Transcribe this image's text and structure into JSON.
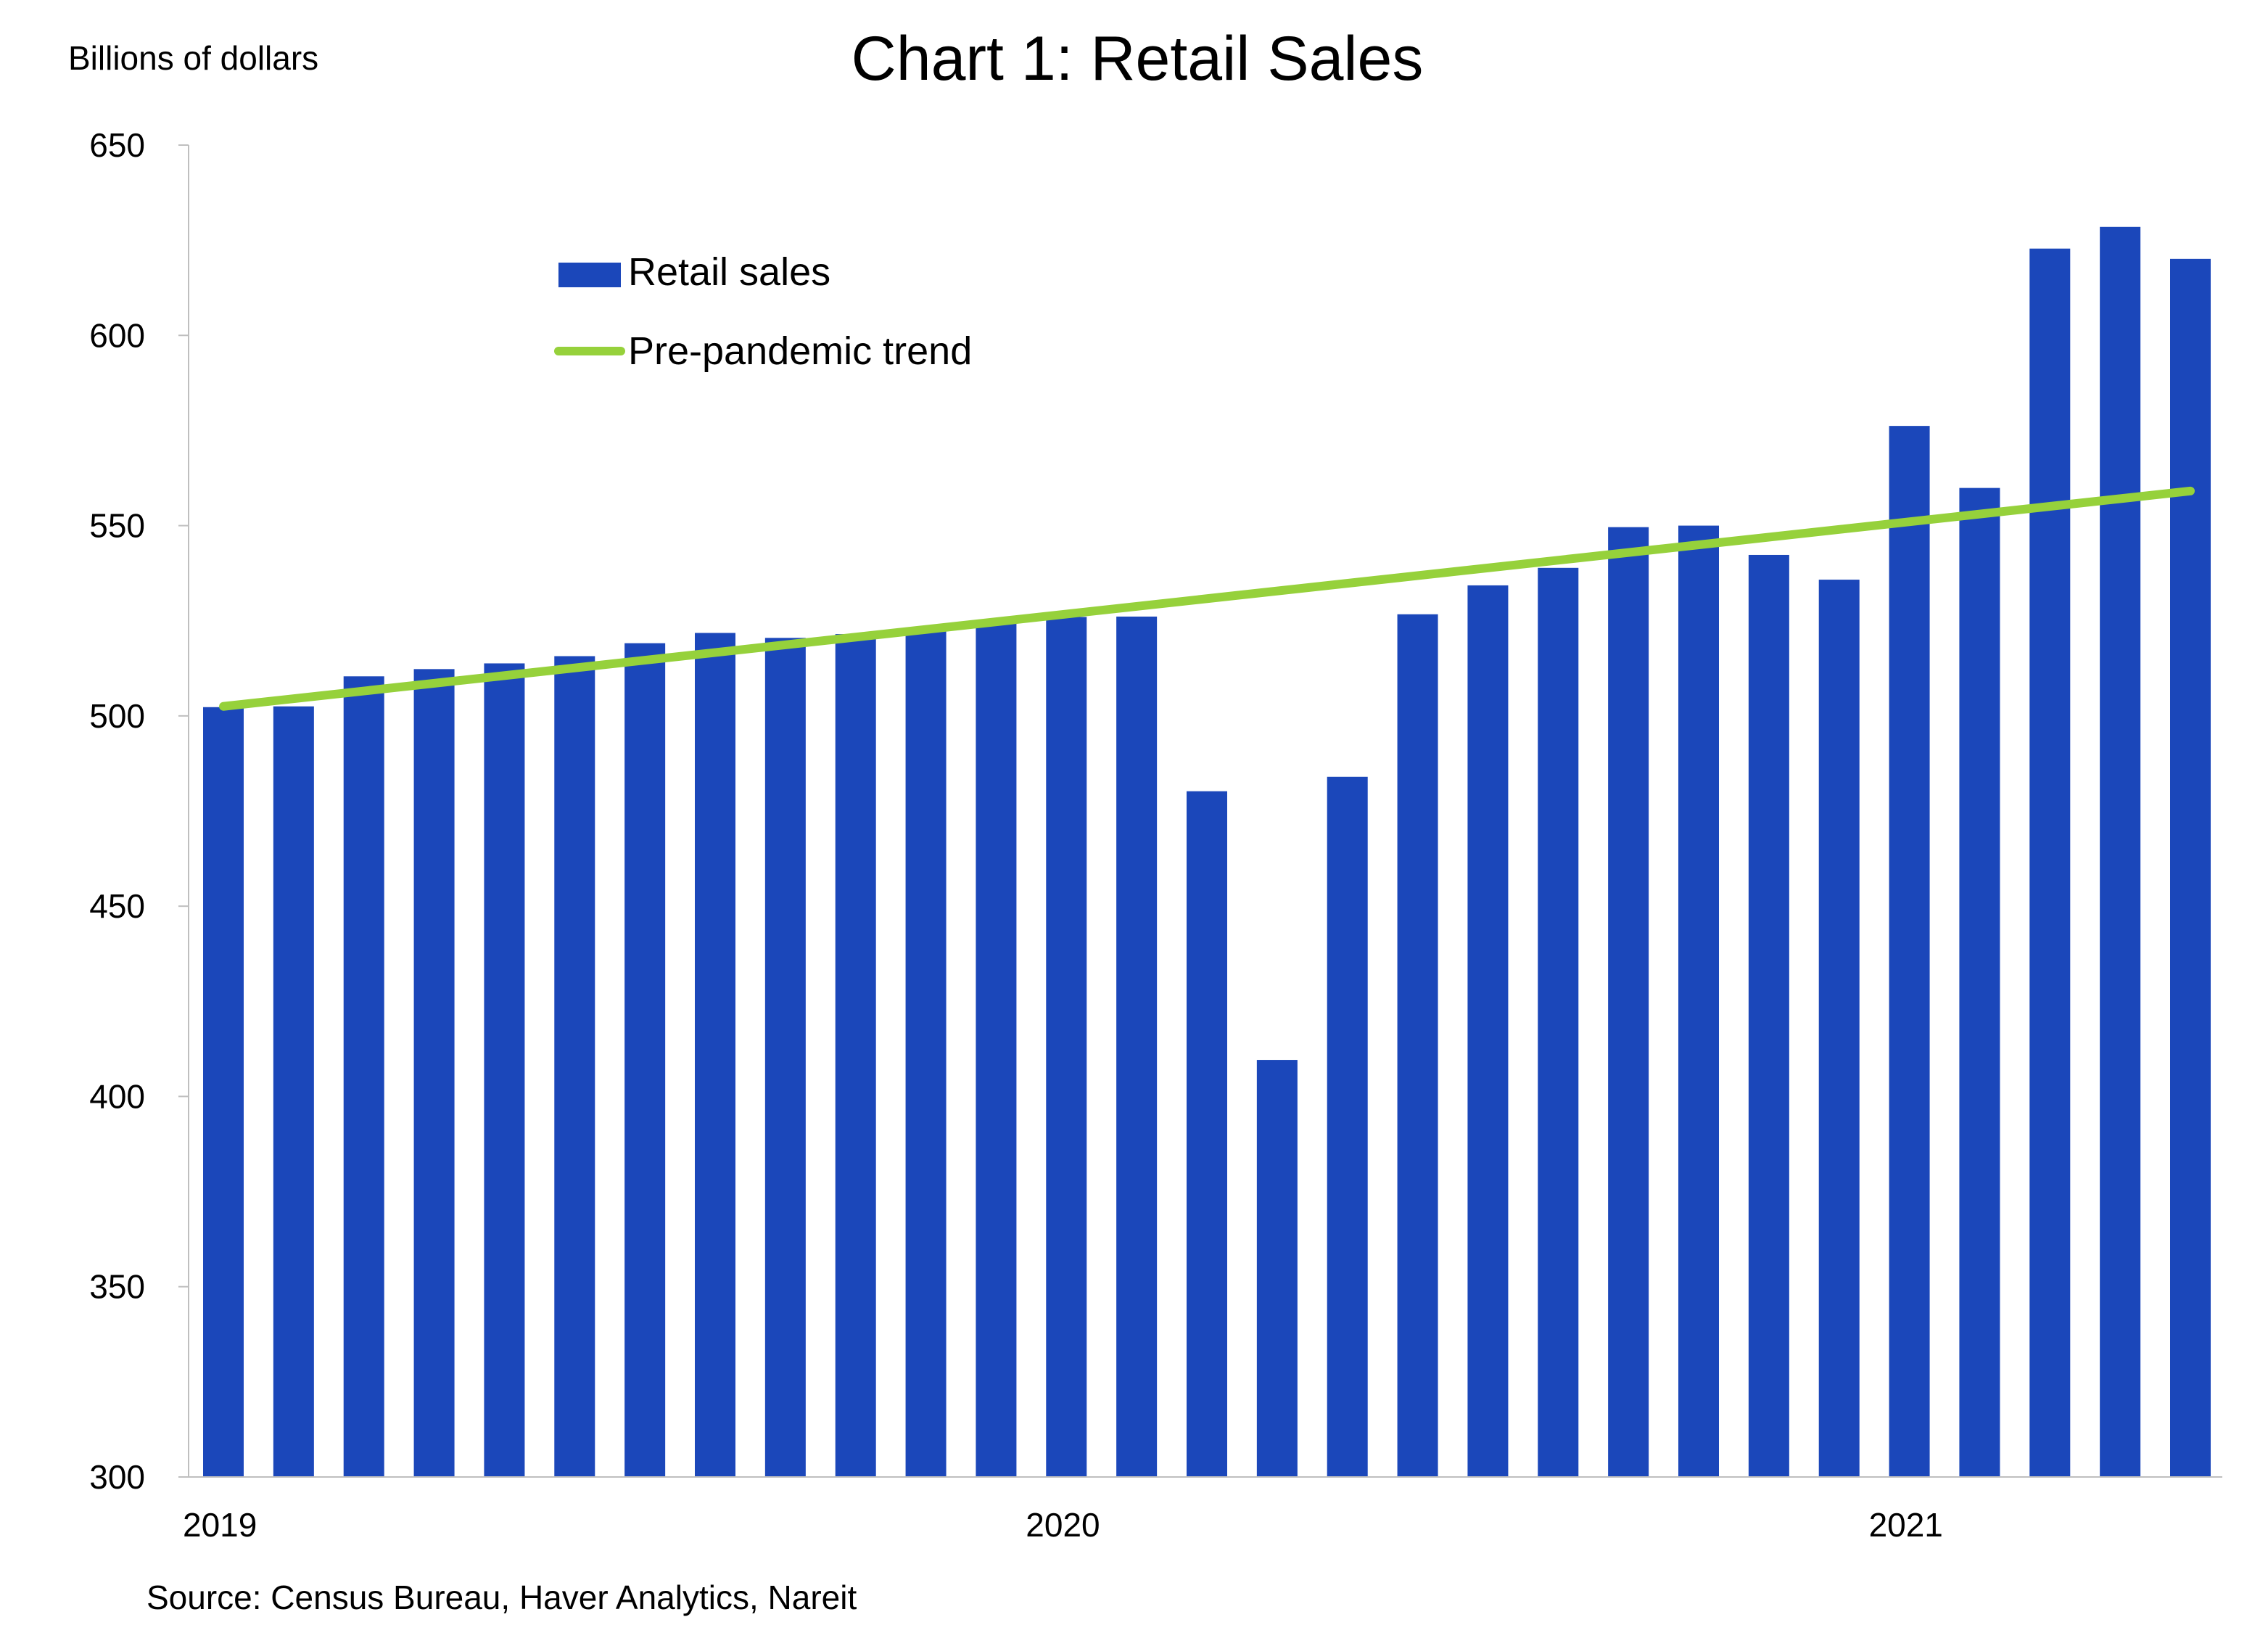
{
  "chart_data": {
    "type": "bar",
    "title": "Chart 1: Retail Sales",
    "ylabel": "Billions of dollars",
    "xlabel": "",
    "source": "Source: Census Bureau, Haver Analytics, Nareit",
    "ylim": [
      300,
      650
    ],
    "yticks": [
      300,
      350,
      400,
      450,
      500,
      550,
      600,
      650
    ],
    "xtick_labels": [
      {
        "label": "2019",
        "index": 0
      },
      {
        "label": "2020",
        "index": 12
      },
      {
        "label": "2021",
        "index": 24
      }
    ],
    "categories": [
      "2019-01",
      "2019-02",
      "2019-03",
      "2019-04",
      "2019-05",
      "2019-06",
      "2019-07",
      "2019-08",
      "2019-09",
      "2019-10",
      "2019-11",
      "2019-12",
      "2020-01",
      "2020-02",
      "2020-03",
      "2020-04",
      "2020-05",
      "2020-06",
      "2020-07",
      "2020-08",
      "2020-09",
      "2020-10",
      "2020-11",
      "2020-12",
      "2021-01",
      "2021-02",
      "2021-03",
      "2021-04",
      "2021-05"
    ],
    "grid": false,
    "legend_position": "top-left",
    "series": [
      {
        "name": "Retail sales",
        "type": "bar",
        "color": "#1b47ba",
        "values": [
          502.3,
          502.5,
          510.4,
          512.3,
          513.8,
          515.7,
          519.1,
          521.8,
          520.5,
          521.5,
          522.5,
          524.5,
          526.0,
          526.1,
          480.2,
          409.6,
          484.0,
          526.7,
          534.3,
          538.9,
          549.6,
          550.0,
          542.3,
          535.8,
          576.2,
          559.9,
          622.8,
          628.5,
          620.1
        ]
      },
      {
        "name": "Pre-pandemic trend",
        "type": "line",
        "color": "#96d13b",
        "start": 502.5,
        "end": 559.1
      }
    ]
  }
}
